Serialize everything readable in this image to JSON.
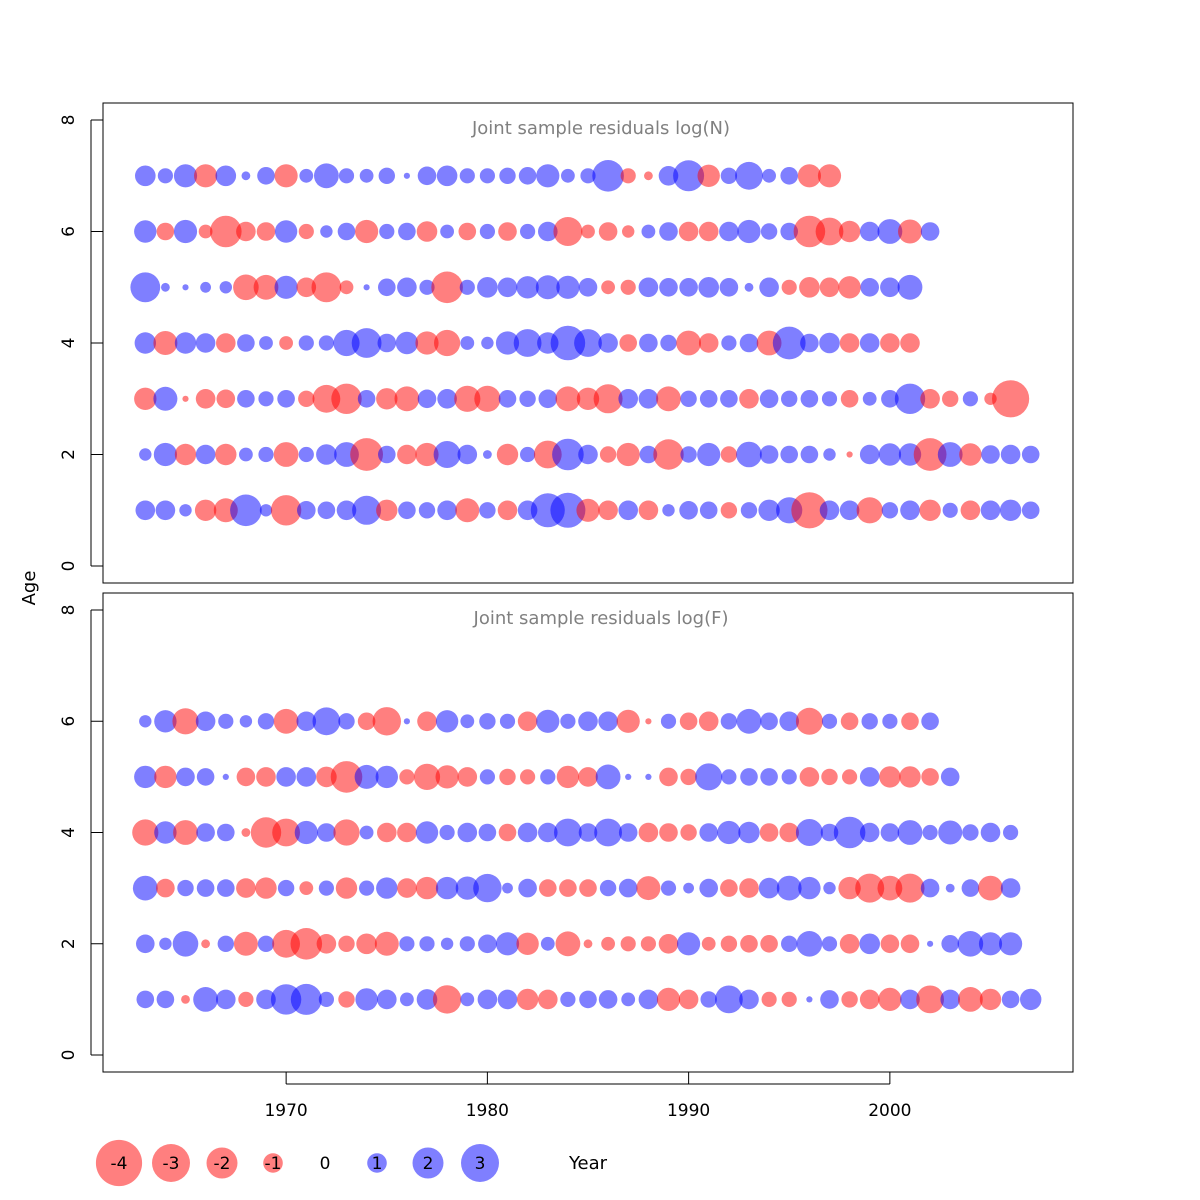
{
  "chart_data": [
    {
      "type": "bubble",
      "title": "Joint sample residuals log(N)",
      "ylabel": "Age",
      "ylim": [
        0,
        8
      ],
      "yticks": [
        0,
        2,
        4,
        6,
        8
      ],
      "ages": [
        1,
        2,
        3,
        4,
        5,
        6,
        7
      ],
      "years": [
        1963,
        1964,
        1965,
        1966,
        1967,
        1968,
        1969,
        1970,
        1971,
        1972,
        1973,
        1974,
        1975,
        1976,
        1977,
        1978,
        1979,
        1980,
        1981,
        1982,
        1983,
        1984,
        1985,
        1986,
        1987,
        1988,
        1989,
        1990,
        1991,
        1992,
        1993,
        1994,
        1995,
        1996,
        1997,
        1998,
        1999,
        2000,
        2001,
        2002,
        2003,
        2004,
        2005,
        2006,
        2007
      ],
      "residuals": [
        [
          1.0,
          1.0,
          0.4,
          -1.2,
          -1.5,
          2.6,
          0.4,
          -2.4,
          0.9,
          0.8,
          1.0,
          2.2,
          -1.2,
          0.8,
          0.7,
          1.0,
          -1.5,
          0.7,
          -1.0,
          1.0,
          3.0,
          3.2,
          -1.4,
          -1.0,
          1.0,
          -1.0,
          0.4,
          0.9,
          0.8,
          -0.7,
          0.7,
          1.2,
          1.8,
          -3.4,
          1.0,
          1.0,
          -1.8,
          0.7,
          1.0,
          -1.2,
          0.6,
          -1.0,
          1.0,
          1.2,
          0.8
        ],
        [
          0.4,
          1.4,
          -1.2,
          1.0,
          -1.2,
          0.5,
          0.6,
          -1.6,
          0.6,
          1.1,
          1.6,
          -2.8,
          0.8,
          -1.0,
          -1.4,
          1.9,
          1.0,
          0.2,
          -1.2,
          0.6,
          -2.0,
          2.6,
          1.0,
          -0.7,
          -1.4,
          0.8,
          -2.4,
          0.7,
          1.4,
          -0.7,
          1.7,
          0.9,
          0.8,
          0.8,
          0.4,
          -0.1,
          1.0,
          1.3,
          1.3,
          -2.8,
          1.6,
          -1.3,
          0.9,
          1.0,
          0.8
        ],
        [
          -1.3,
          1.5,
          -0.1,
          -1.0,
          -0.9,
          0.8,
          0.6,
          0.8,
          -0.7,
          -2.0,
          -2.4,
          0.8,
          -1.2,
          -1.6,
          0.9,
          1.0,
          -1.8,
          -1.8,
          0.8,
          0.7,
          0.9,
          -1.6,
          -1.3,
          -2.2,
          1.0,
          1.0,
          -1.6,
          0.7,
          0.8,
          0.8,
          -1.0,
          0.9,
          0.7,
          0.8,
          0.6,
          -0.8,
          0.5,
          0.8,
          2.4,
          -1.0,
          -0.7,
          0.6,
          -0.4,
          -3.6
        ],
        [
          1.2,
          -1.5,
          1.2,
          1.0,
          -1.0,
          0.8,
          0.5,
          -0.5,
          0.6,
          0.6,
          1.8,
          2.3,
          0.9,
          1.3,
          -1.4,
          -1.8,
          0.5,
          0.4,
          1.4,
          2.0,
          1.2,
          3.1,
          2.0,
          1.0,
          -0.8,
          0.9,
          0.7,
          -1.6,
          -1.0,
          0.6,
          0.9,
          -1.6,
          2.8,
          0.9,
          1.1,
          -1.0,
          1.0,
          -1.0,
          -1.0
        ],
        [
          2.3,
          0.2,
          0.1,
          0.3,
          0.4,
          -1.7,
          -1.6,
          1.4,
          -1.0,
          -2.3,
          -0.5,
          0.1,
          0.8,
          1.0,
          0.6,
          -2.6,
          0.6,
          1.1,
          1.0,
          1.3,
          1.5,
          1.4,
          0.9,
          -0.5,
          -0.6,
          1.0,
          0.9,
          0.9,
          1.1,
          0.9,
          0.2,
          1.0,
          -0.6,
          -1.1,
          -1.0,
          -1.3,
          0.9,
          1.0,
          1.6
        ],
        [
          1.3,
          -0.8,
          1.4,
          -0.5,
          -2.6,
          -1.0,
          -0.9,
          1.3,
          -0.6,
          0.4,
          0.8,
          -1.4,
          0.6,
          0.8,
          -1.1,
          0.5,
          -0.8,
          0.6,
          -0.9,
          0.6,
          1.0,
          -2.2,
          -0.5,
          -0.9,
          -0.4,
          0.5,
          0.9,
          -1.0,
          -1.0,
          1.0,
          1.4,
          0.7,
          0.8,
          -2.6,
          -2.0,
          -1.2,
          1.0,
          1.6,
          -1.5,
          0.9
        ],
        [
          1.1,
          0.6,
          1.4,
          -1.4,
          1.1,
          0.2,
          0.8,
          -1.4,
          0.5,
          1.6,
          0.6,
          0.5,
          0.7,
          0.1,
          0.9,
          1.1,
          0.6,
          0.6,
          0.7,
          0.8,
          1.4,
          0.5,
          0.6,
          2.6,
          -0.6,
          -0.2,
          1.0,
          2.5,
          -1.3,
          0.7,
          2.0,
          0.5,
          0.8,
          -1.4,
          -1.4
        ]
      ]
    },
    {
      "type": "bubble",
      "title": "Joint sample residuals log(F)",
      "ylabel": "Age",
      "ylim": [
        0,
        8
      ],
      "yticks": [
        0,
        2,
        4,
        6,
        8
      ],
      "ages": [
        1,
        2,
        3,
        4,
        5,
        6
      ],
      "years": [
        1963,
        1964,
        1965,
        1966,
        1967,
        1968,
        1969,
        1970,
        1971,
        1972,
        1973,
        1974,
        1975,
        1976,
        1977,
        1978,
        1979,
        1980,
        1981,
        1982,
        1983,
        1984,
        1985,
        1986,
        1987,
        1988,
        1989,
        1990,
        1991,
        1992,
        1993,
        1994,
        1995,
        1996,
        1997,
        1998,
        1999,
        2000,
        2001,
        2002,
        2003,
        2004,
        2005,
        2006,
        2007
      ],
      "residuals": [
        [
          0.8,
          0.8,
          -0.2,
          1.6,
          1.0,
          -0.6,
          1.0,
          2.4,
          2.5,
          0.6,
          -0.7,
          1.3,
          1.0,
          0.5,
          1.1,
          -2.1,
          0.5,
          1.0,
          1.0,
          -1.2,
          -1.0,
          0.6,
          0.8,
          0.9,
          0.5,
          1.0,
          -1.4,
          -1.0,
          0.7,
          2.0,
          1.0,
          -0.6,
          -0.6,
          0.1,
          0.9,
          -0.7,
          -1.0,
          -1.4,
          1.0,
          -2.0,
          1.0,
          -1.6,
          -1.2,
          0.8,
          1.2
        ],
        [
          0.9,
          0.4,
          1.7,
          -0.2,
          0.7,
          -1.5,
          0.7,
          -2.0,
          -2.6,
          -1.0,
          -0.7,
          -1.1,
          -1.5,
          0.6,
          0.6,
          0.4,
          0.6,
          0.9,
          1.4,
          -1.3,
          0.5,
          -1.6,
          -0.2,
          -0.5,
          -0.6,
          -0.6,
          -1.0,
          1.4,
          -0.5,
          -0.7,
          -0.8,
          -0.8,
          0.7,
          1.7,
          0.6,
          -1.0,
          1.1,
          -0.9,
          -0.9,
          0.1,
          0.8,
          1.7,
          1.4,
          1.4
        ],
        [
          1.6,
          -0.9,
          0.7,
          0.8,
          0.8,
          -1.0,
          -1.2,
          0.7,
          -0.5,
          0.6,
          -1.2,
          0.6,
          1.2,
          -1.0,
          -1.3,
          1.3,
          1.4,
          2.1,
          0.3,
          0.9,
          -0.8,
          -0.8,
          -0.8,
          0.7,
          0.9,
          -1.5,
          0.6,
          0.3,
          0.9,
          -0.8,
          -1.0,
          1.1,
          1.6,
          1.3,
          0.4,
          -1.3,
          -2.2,
          -1.6,
          -2.2,
          0.9,
          0.2,
          0.8,
          -1.6,
          1.0
        ],
        [
          -1.8,
          1.3,
          -1.6,
          0.9,
          0.8,
          -0.2,
          -2.4,
          -2.0,
          1.4,
          0.9,
          -1.8,
          0.5,
          -1.0,
          -1.0,
          1.3,
          0.6,
          1.0,
          0.8,
          -0.8,
          1.0,
          1.0,
          2.0,
          0.9,
          2.0,
          0.9,
          -1.0,
          -0.9,
          -0.7,
          0.9,
          1.4,
          1.2,
          -0.9,
          -1.0,
          1.9,
          0.8,
          2.6,
          1.0,
          0.9,
          1.6,
          0.6,
          1.5,
          0.7,
          1.0,
          0.6
        ],
        [
          1.3,
          -1.3,
          0.9,
          0.8,
          0.1,
          -0.9,
          -1.0,
          1.0,
          1.0,
          -1.1,
          -2.6,
          1.5,
          1.3,
          -0.6,
          -1.8,
          -1.4,
          -1.0,
          0.6,
          -0.7,
          -0.6,
          0.6,
          -1.3,
          -1.0,
          1.6,
          0.1,
          0.1,
          -0.9,
          -0.7,
          1.9,
          0.6,
          0.8,
          0.8,
          0.6,
          -1.0,
          -0.7,
          -0.6,
          1.0,
          -1.2,
          -1.2,
          -0.8,
          0.9
        ],
        [
          0.4,
          1.3,
          -1.8,
          1.0,
          0.6,
          0.4,
          0.7,
          -1.6,
          1.0,
          2.0,
          0.7,
          -0.8,
          -2.1,
          0.1,
          -1.0,
          1.3,
          0.5,
          0.7,
          0.6,
          -1.0,
          1.4,
          0.6,
          1.0,
          1.0,
          -1.4,
          -0.1,
          0.6,
          -0.8,
          -1.0,
          0.7,
          1.6,
          0.8,
          1.0,
          -1.9,
          0.6,
          -0.8,
          0.7,
          0.6,
          -0.8,
          0.8
        ]
      ]
    }
  ],
  "axis": {
    "xlabel": "Year",
    "xticks": [
      1970,
      1980,
      1990,
      2000
    ],
    "xlim": [
      1960.9,
      2009.1
    ]
  },
  "legend": {
    "values": [
      -4,
      -3,
      -2,
      -1,
      0,
      1,
      2,
      3
    ],
    "labels": [
      "-4",
      "-3",
      "-2",
      "-1",
      "0",
      "1",
      "2",
      "3"
    ],
    "title": "Year"
  },
  "colors": {
    "negative": "#ff0000",
    "positive": "#0000ff",
    "axis": "#000000",
    "title": "#808080",
    "legend_text": "#000000"
  }
}
